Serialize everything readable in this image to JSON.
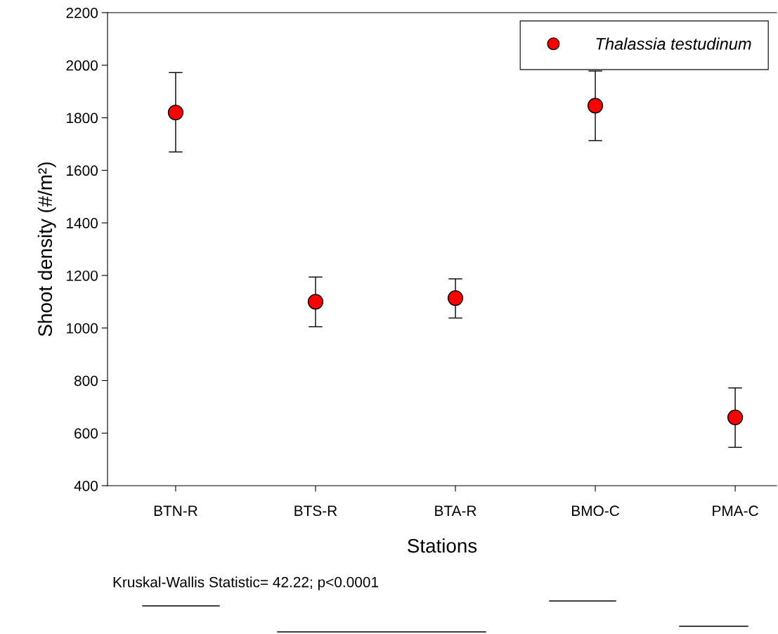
{
  "chart_data": {
    "type": "scatter",
    "xlabel": "Stations",
    "ylabel": "Shoot density (#/m²)",
    "categories": [
      "BTN-R",
      "BTS-R",
      "BTA-R",
      "BMO-C",
      "PMA-C"
    ],
    "series": [
      {
        "name": "Thalassia testudinum",
        "color": "#ff0000",
        "values": [
          1820,
          1100,
          1114,
          1846,
          660
        ],
        "errors": [
          [
            1670,
            1972
          ],
          [
            1005,
            1194
          ],
          [
            1038,
            1187
          ],
          [
            1713,
            1978
          ],
          [
            546,
            772
          ]
        ]
      }
    ],
    "ylim": [
      400,
      2200
    ],
    "yticks": [
      400,
      600,
      800,
      1000,
      1200,
      1400,
      1600,
      1800,
      2000,
      2200
    ],
    "marker": "circle",
    "legend": "top right",
    "grid": false,
    "annotations": [
      "Kruskal-Wallis Statistic= 42.22; p<0.0001"
    ]
  }
}
